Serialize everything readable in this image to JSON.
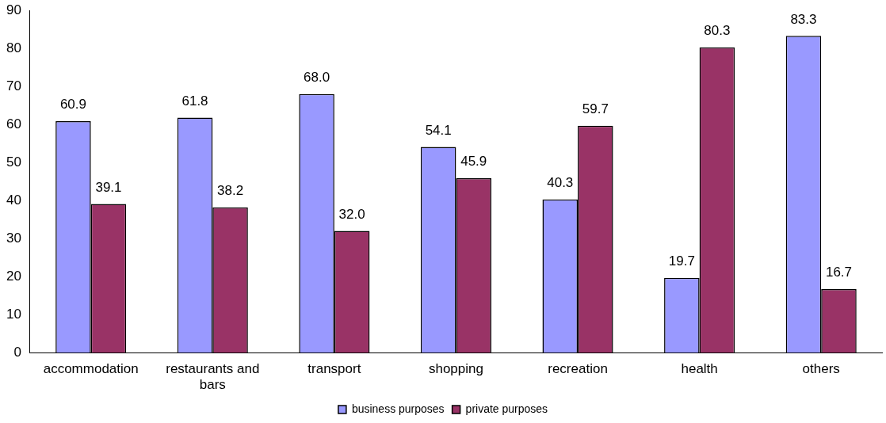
{
  "chart_data": {
    "type": "bar",
    "categories": [
      "accommodation",
      "restaurants and bars",
      "transport",
      "shopping",
      "recreation",
      "health",
      "others"
    ],
    "series": [
      {
        "name": "business purposes",
        "color": "#9999ff",
        "values": [
          60.9,
          61.8,
          68.0,
          54.1,
          40.3,
          19.7,
          83.3
        ],
        "value_labels": [
          "60.9",
          "61.8",
          "68.0",
          "54.1",
          "40.3",
          "19.7",
          "83.3"
        ]
      },
      {
        "name": "private purposes",
        "color": "#993366",
        "values": [
          39.1,
          38.2,
          32.0,
          45.9,
          59.7,
          80.3,
          16.7
        ],
        "value_labels": [
          "39.1",
          "38.2",
          "32.0",
          "45.9",
          "59.7",
          "80.3",
          "16.7"
        ]
      }
    ],
    "ylim": [
      0,
      90
    ],
    "yticks": [
      0,
      10,
      20,
      30,
      40,
      50,
      60,
      70,
      80,
      90
    ],
    "grid": false,
    "legend": "bottom"
  }
}
